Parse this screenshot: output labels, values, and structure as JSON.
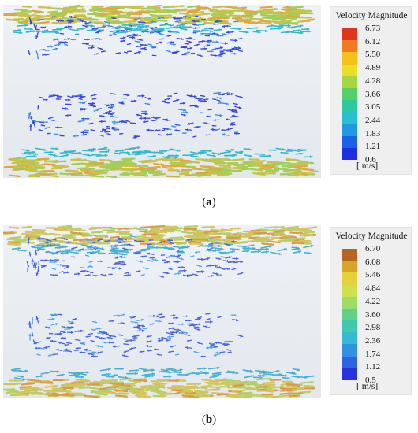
{
  "panels": [
    {
      "id": "a",
      "legend_title": "Velocity Magnitude",
      "ticks": [
        "6.73",
        "6.12",
        "5.50",
        "4.89",
        "4.28",
        "3.66",
        "3.05",
        "2.44",
        "1.83",
        "1.21",
        "0.6"
      ],
      "unit": "[ m/s]",
      "caption_letter": "a",
      "colorbar": [
        "#e0341c",
        "#f07a1e",
        "#f5c21d",
        "#e9df2a",
        "#a6d742",
        "#55cf6a",
        "#2dc7a0",
        "#27bfd1",
        "#1f99e2",
        "#1d5fe6",
        "#1f2fe0"
      ]
    },
    {
      "id": "b",
      "legend_title": "Velocity Magnitude",
      "ticks": [
        "6.70",
        "6.08",
        "5.46",
        "4.84",
        "4.22",
        "3.60",
        "2.98",
        "2.36",
        "1.74",
        "1.12",
        "0.5"
      ],
      "unit": "[ m/s]",
      "caption_letter": "b",
      "colorbar": [
        "#b8641e",
        "#d6a52a",
        "#e3d23a",
        "#cfe04f",
        "#9cdc6a",
        "#62d08a",
        "#3fc7b0",
        "#37b9d6",
        "#3391e3",
        "#2f63e6",
        "#2a31dc"
      ]
    }
  ]
}
